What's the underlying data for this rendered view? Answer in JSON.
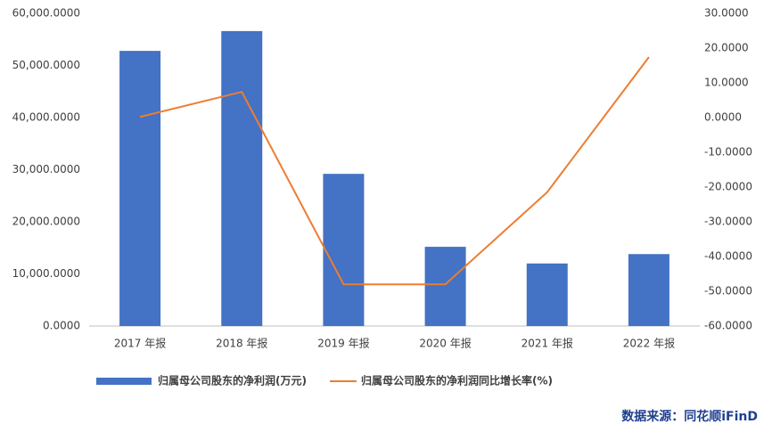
{
  "chart_data": {
    "type": "bar-line",
    "categories": [
      "2017 年报",
      "2018 年报",
      "2019 年报",
      "2020 年报",
      "2021 年报",
      "2022 年报"
    ],
    "series": [
      {
        "name": "归属母公司股东的净利润(万元)",
        "type": "bar",
        "color": "#4472c4",
        "values": [
          52800,
          56600,
          29200,
          15200,
          12000,
          13800
        ]
      },
      {
        "name": "归属母公司股东的净利润同比增长率(%)",
        "type": "line",
        "axis": "y2",
        "color": "#ed7d31",
        "values": [
          0.2,
          7.4,
          -48.0,
          -48.0,
          -21.5,
          17.4
        ]
      }
    ],
    "ylim": [
      0,
      60000
    ],
    "yticks": [
      {
        "value": 0,
        "label": "0.0000"
      },
      {
        "value": 10000,
        "label": "10,000.0000"
      },
      {
        "value": 20000,
        "label": "20,000.0000"
      },
      {
        "value": 30000,
        "label": "30,000.0000"
      },
      {
        "value": 40000,
        "label": "40,000.0000"
      },
      {
        "value": 50000,
        "label": "50,000.0000"
      },
      {
        "value": 60000,
        "label": "60,000.0000"
      }
    ],
    "y2lim": [
      -60,
      30
    ],
    "y2ticks": [
      {
        "value": -60,
        "label": "-60.0000"
      },
      {
        "value": -50,
        "label": "-50.0000"
      },
      {
        "value": -40,
        "label": "-40.0000"
      },
      {
        "value": -30,
        "label": "-30.0000"
      },
      {
        "value": -20,
        "label": "-20.0000"
      },
      {
        "value": -10,
        "label": "-10.0000"
      },
      {
        "value": 0,
        "label": "0.0000"
      },
      {
        "value": 10,
        "label": "10.0000"
      },
      {
        "value": 20,
        "label": "20.0000"
      },
      {
        "value": 30,
        "label": "30.0000"
      }
    ],
    "grid": false,
    "legend": "bottom",
    "source": "数据来源：同花顺iFinD"
  }
}
